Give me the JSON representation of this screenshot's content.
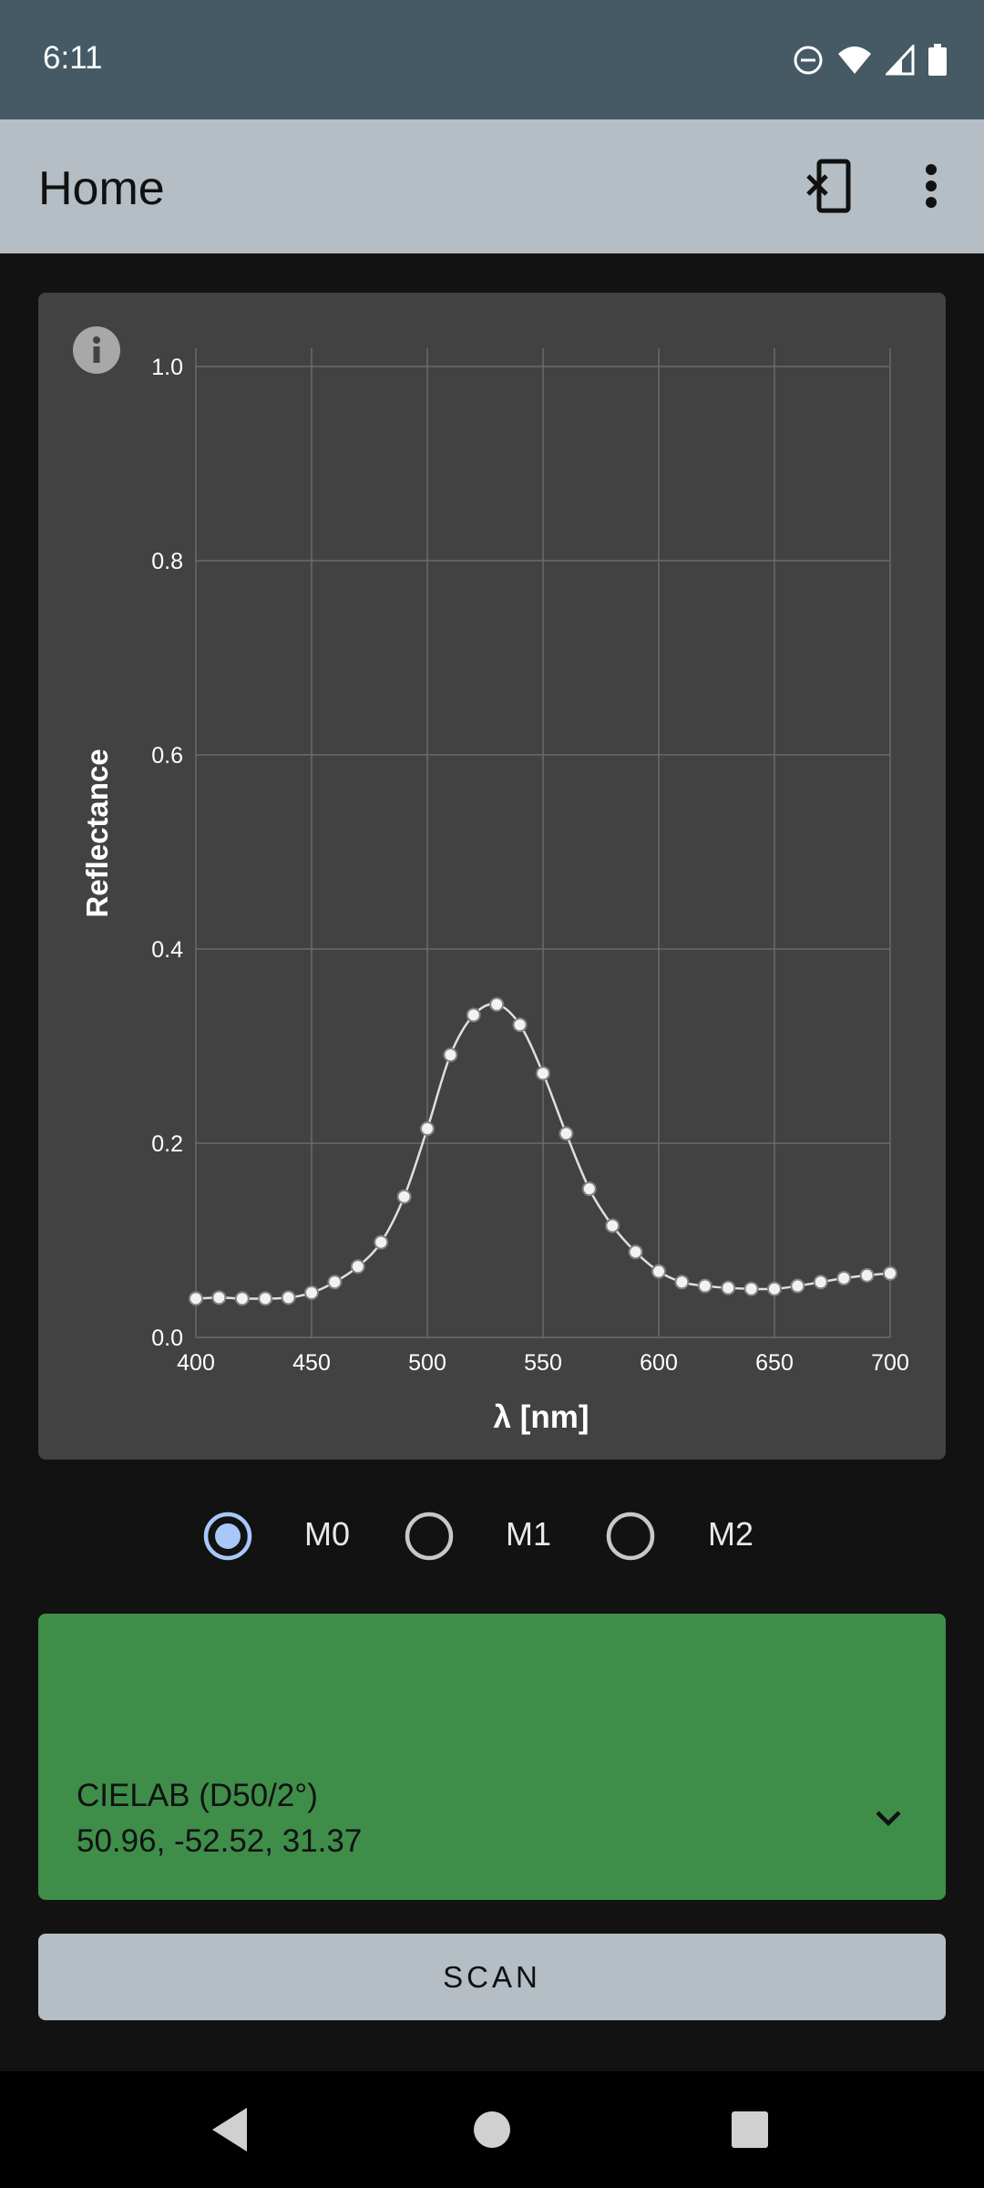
{
  "status_bar": {
    "time": "6:11",
    "icons": [
      "do-not-disturb-icon",
      "wifi-icon",
      "signal-icon",
      "battery-icon"
    ]
  },
  "app_bar": {
    "title": "Home",
    "actions": [
      "disconnect-device-icon",
      "more-vert-icon"
    ]
  },
  "chart_data": {
    "type": "line",
    "xlabel": "λ [nm]",
    "ylabel": "Reflectance",
    "xlim": [
      400,
      700
    ],
    "ylim": [
      0,
      1
    ],
    "x_ticks": [
      "400",
      "450",
      "500",
      "550",
      "600",
      "650",
      "700"
    ],
    "y_ticks": [
      "0.0",
      "0.2",
      "0.4",
      "0.6",
      "0.8",
      "1.0"
    ],
    "grid": true,
    "series": [
      {
        "color": "#e0e0e0",
        "x": [
          400,
          410,
          420,
          430,
          440,
          450,
          460,
          470,
          480,
          490,
          500,
          510,
          520,
          530,
          540,
          550,
          560,
          570,
          580,
          590,
          600,
          610,
          620,
          630,
          640,
          650,
          660,
          670,
          680,
          690,
          700
        ],
        "y": [
          0.04,
          0.041,
          0.04,
          0.04,
          0.041,
          0.046,
          0.057,
          0.073,
          0.098,
          0.145,
          0.215,
          0.291,
          0.332,
          0.343,
          0.322,
          0.272,
          0.21,
          0.153,
          0.115,
          0.088,
          0.068,
          0.057,
          0.053,
          0.051,
          0.05,
          0.05,
          0.053,
          0.057,
          0.061,
          0.064,
          0.066
        ]
      }
    ]
  },
  "info_icon": "info-icon",
  "modes": {
    "options": [
      "M0",
      "M1",
      "M2"
    ],
    "selected": "M0"
  },
  "color_result": {
    "label": "CIELAB (D50/2°)",
    "values": "50.96, -52.52, 31.37",
    "swatch_color": "#3e8e4a"
  },
  "scan_button": {
    "label": "SCAN"
  },
  "nav_bar": {
    "buttons": [
      "back-icon",
      "home-icon",
      "recents-icon"
    ]
  }
}
